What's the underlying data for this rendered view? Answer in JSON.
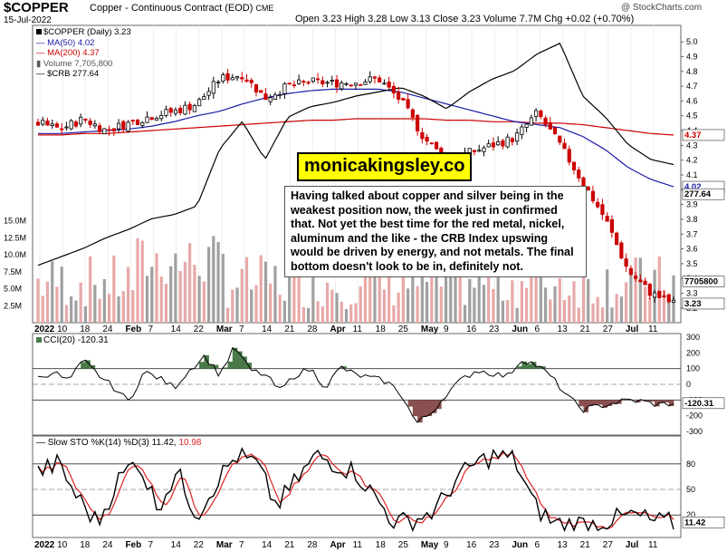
{
  "header": {
    "symbol": "$COPPER",
    "name": "Copper - Continuous Contract (EOD)",
    "exchange": "CME",
    "date": "15-Jul-2022",
    "ohlc_text": "Open 3.23  High 3.28  Low 3.13  Close 3.23  Volume 7.7M  Chg +0.02 (+0.70%)",
    "stamp": "@ StockCharts.com"
  },
  "legend": {
    "main": "$COPPER (Daily) 3.23",
    "ma50": "MA(50) 4.02",
    "ma200": "MA(200) 4.37",
    "volume": "Volume 7,705,800",
    "crb": "$CRB 277.64"
  },
  "colors": {
    "up": "#ffffff",
    "down": "#cc0000",
    "ma50": "#1a1aa6",
    "ma200": "#cc0000",
    "crb": "#000000",
    "vol_up": "#a0a0a0",
    "vol_down": "#e8a8a8",
    "cci_pos": "#4a7a4a",
    "cci_neg": "#8a5050",
    "k": "#000000",
    "d": "#dd2222"
  },
  "watermark": "monicakingsley.co",
  "annotation": "Having talked about copper and silver being in the weakest position now, the week just in confirmed that. Not yet the best time for the red metal, nickel, aluminum and the like - the CRB Index upswing would be driven by energy, and not metals. The final bottom doesn't look to be in, definitely not.",
  "x_axis_labels": [
    "2022",
    "10",
    "18",
    "24",
    "Feb",
    "7",
    "14",
    "22",
    "Mar",
    "7",
    "14",
    "21",
    "28",
    "Apr",
    "11",
    "18",
    "25",
    "May",
    "9",
    "16",
    "23",
    "Jun",
    "6",
    "13",
    "21",
    "27",
    "Jul",
    "11"
  ],
  "price_ticks": [
    "5.0",
    "4.9",
    "4.8",
    "4.7",
    "4.6",
    "4.5",
    "4.4",
    "4.3",
    "4.2",
    "4.1",
    "4.0",
    "3.9",
    "3.8",
    "3.7",
    "3.6",
    "3.5",
    "3.4",
    "3.3",
    "3.2"
  ],
  "price_tags": {
    "ma200": "4.37",
    "ma50": "4.02",
    "crb": "277.64",
    "volume": "7705800",
    "close": "3.23"
  },
  "volume_ticks": [
    "15.0M",
    "12.5M",
    "10.0M",
    "7.5M",
    "5.0M",
    "2.5M"
  ],
  "cci": {
    "legend": "CCI(20) -120.31",
    "ticks": [
      "300",
      "200",
      "100",
      "0",
      "-100",
      "-200",
      "-300"
    ],
    "tag": "-120.31"
  },
  "sto": {
    "legend_prefix": "Slow STO %K(14) %D(3) 11.42,",
    "legend_d": "10.98",
    "ticks": [
      "80",
      "50",
      "20"
    ],
    "tag": "11.42"
  },
  "chart_data": {
    "type": "line",
    "title": "$COPPER (Daily) 3.23",
    "x": [
      "2022-01-03",
      "2022-01-10",
      "2022-01-18",
      "2022-01-24",
      "2022-02-01",
      "2022-02-07",
      "2022-02-14",
      "2022-02-22",
      "2022-03-01",
      "2022-03-07",
      "2022-03-14",
      "2022-03-21",
      "2022-03-28",
      "2022-04-04",
      "2022-04-11",
      "2022-04-18",
      "2022-04-25",
      "2022-05-02",
      "2022-05-09",
      "2022-05-16",
      "2022-05-23",
      "2022-06-01",
      "2022-06-06",
      "2022-06-13",
      "2022-06-21",
      "2022-06-27",
      "2022-07-05",
      "2022-07-11",
      "2022-07-15"
    ],
    "series": [
      {
        "name": "$COPPER",
        "values": [
          4.45,
          4.41,
          4.48,
          4.4,
          4.45,
          4.5,
          4.53,
          4.58,
          4.75,
          4.78,
          4.62,
          4.7,
          4.73,
          4.72,
          4.73,
          4.75,
          4.6,
          4.35,
          4.2,
          4.25,
          4.3,
          4.35,
          4.52,
          4.3,
          4.05,
          3.8,
          3.45,
          3.3,
          3.23
        ]
      },
      {
        "name": "MA(50)",
        "values": [
          4.38,
          4.38,
          4.39,
          4.4,
          4.41,
          4.43,
          4.46,
          4.5,
          4.53,
          4.58,
          4.62,
          4.65,
          4.67,
          4.68,
          4.68,
          4.68,
          4.66,
          4.62,
          4.58,
          4.54,
          4.5,
          4.46,
          4.44,
          4.42,
          4.36,
          4.27,
          4.15,
          4.07,
          4.02
        ]
      },
      {
        "name": "MA(200)",
        "values": [
          4.37,
          4.37,
          4.38,
          4.38,
          4.39,
          4.4,
          4.41,
          4.42,
          4.43,
          4.44,
          4.45,
          4.46,
          4.47,
          4.47,
          4.48,
          4.48,
          4.48,
          4.48,
          4.47,
          4.47,
          4.46,
          4.46,
          4.45,
          4.45,
          4.44,
          4.42,
          4.4,
          4.38,
          4.37
        ]
      },
      {
        "name": "$CRB",
        "values": [
          230,
          234,
          238,
          243,
          247,
          252,
          254,
          258,
          285,
          298,
          280,
          300,
          305,
          307,
          310,
          312,
          314,
          310,
          304,
          312,
          318,
          322,
          330,
          335,
          310,
          300,
          287,
          280,
          277.64
        ]
      }
    ],
    "ylim": [
      3.15,
      5.05
    ],
    "volume_ylim": [
      0,
      16
    ]
  }
}
